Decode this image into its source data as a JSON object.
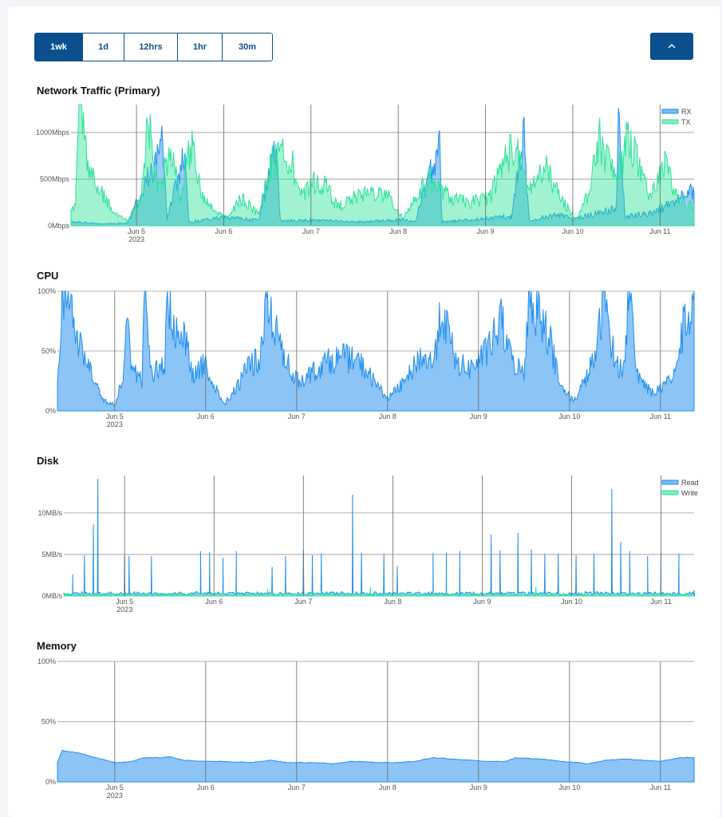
{
  "controls": {
    "ranges": [
      {
        "label": "1wk",
        "active": true
      },
      {
        "label": "1d",
        "active": false
      },
      {
        "label": "12hrs",
        "active": false
      },
      {
        "label": "1hr",
        "active": false
      },
      {
        "label": "30m",
        "active": false
      }
    ],
    "collapse_icon": "chevron-up-icon"
  },
  "colors": {
    "rx": "#1e8ef0",
    "tx": "#2fe29a",
    "cpu_line": "#1e8ef0",
    "cpu_fill": "#8cc4f6",
    "read": "#1e8ef0",
    "write": "#2fe29a",
    "memory_line": "#1e8ef0",
    "memory_fill": "#8cc4f6",
    "accent": "#0b4f8f"
  },
  "chart_data": [
    {
      "id": "network",
      "title": "Network Traffic (Primary)",
      "type": "area",
      "x_ticks": [
        "Jun 5",
        "Jun 6",
        "Jun 7",
        "Jun 8",
        "Jun 9",
        "Jun 10",
        "Jun 11"
      ],
      "x_year": "2023",
      "x_range": [
        4.25,
        11.39
      ],
      "y_ticks": [
        "0Mbps",
        "500Mbps",
        "1000Mbps"
      ],
      "y_tick_values": [
        0,
        500,
        1000
      ],
      "ylim": [
        0,
        1300
      ],
      "legend": [
        "RX",
        "TX"
      ],
      "legend_position": "top-right",
      "grid": true,
      "series": [
        {
          "name": "RX",
          "points": [
            [
              4.3,
              40
            ],
            [
              4.6,
              20
            ],
            [
              4.9,
              30
            ],
            [
              5.3,
              870
            ],
            [
              5.35,
              60
            ],
            [
              5.55,
              740
            ],
            [
              5.6,
              40
            ],
            [
              6.0,
              90
            ],
            [
              6.4,
              60
            ],
            [
              6.6,
              820
            ],
            [
              6.65,
              50
            ],
            [
              7.0,
              60
            ],
            [
              7.5,
              40
            ],
            [
              8.0,
              60
            ],
            [
              8.2,
              50
            ],
            [
              8.47,
              900
            ],
            [
              8.5,
              40
            ],
            [
              8.8,
              60
            ],
            [
              9.3,
              100
            ],
            [
              9.44,
              960
            ],
            [
              9.5,
              60
            ],
            [
              9.85,
              120
            ],
            [
              10.0,
              70
            ],
            [
              10.5,
              180
            ],
            [
              10.52,
              1180
            ],
            [
              10.6,
              100
            ],
            [
              10.9,
              130
            ],
            [
              11.2,
              270
            ],
            [
              11.39,
              380
            ]
          ]
        },
        {
          "name": "TX",
          "points": [
            [
              4.3,
              200
            ],
            [
              4.35,
              1260
            ],
            [
              4.45,
              600
            ],
            [
              4.6,
              350
            ],
            [
              4.75,
              120
            ],
            [
              4.9,
              60
            ],
            [
              5.05,
              300
            ],
            [
              5.13,
              1130
            ],
            [
              5.25,
              400
            ],
            [
              5.4,
              800
            ],
            [
              5.5,
              300
            ],
            [
              5.63,
              880
            ],
            [
              5.75,
              300
            ],
            [
              5.9,
              150
            ],
            [
              6.05,
              80
            ],
            [
              6.2,
              300
            ],
            [
              6.4,
              120
            ],
            [
              6.55,
              680
            ],
            [
              6.75,
              770
            ],
            [
              6.9,
              300
            ],
            [
              7.05,
              480
            ],
            [
              7.2,
              400
            ],
            [
              7.3,
              200
            ],
            [
              7.5,
              300
            ],
            [
              7.7,
              360
            ],
            [
              7.9,
              300
            ],
            [
              8.05,
              80
            ],
            [
              8.2,
              300
            ],
            [
              8.35,
              500
            ],
            [
              8.6,
              300
            ],
            [
              8.8,
              250
            ],
            [
              9.05,
              300
            ],
            [
              9.25,
              780
            ],
            [
              9.35,
              800
            ],
            [
              9.5,
              400
            ],
            [
              9.7,
              600
            ],
            [
              9.85,
              300
            ],
            [
              10.05,
              60
            ],
            [
              10.2,
              400
            ],
            [
              10.3,
              930
            ],
            [
              10.5,
              500
            ],
            [
              10.65,
              1000
            ],
            [
              10.8,
              480
            ],
            [
              10.9,
              300
            ],
            [
              11.05,
              650
            ],
            [
              11.2,
              300
            ],
            [
              11.39,
              200
            ]
          ]
        }
      ]
    },
    {
      "id": "cpu",
      "title": "CPU",
      "type": "area",
      "x_ticks": [
        "Jun 5",
        "Jun 6",
        "Jun 7",
        "Jun 8",
        "Jun 9",
        "Jun 10",
        "Jun 11"
      ],
      "x_year": "2023",
      "x_range": [
        4.37,
        11.37
      ],
      "y_ticks": [
        "0%",
        "50%",
        "100%"
      ],
      "y_tick_values": [
        0,
        50,
        100
      ],
      "ylim": [
        0,
        100
      ],
      "grid": true,
      "series": [
        {
          "name": "",
          "points": [
            [
              4.37,
              20
            ],
            [
              4.42,
              100
            ],
            [
              4.5,
              85
            ],
            [
              4.6,
              60
            ],
            [
              4.7,
              40
            ],
            [
              4.8,
              20
            ],
            [
              4.9,
              8
            ],
            [
              5.0,
              5
            ],
            [
              5.1,
              30
            ],
            [
              5.12,
              80
            ],
            [
              5.2,
              35
            ],
            [
              5.3,
              25
            ],
            [
              5.33,
              95
            ],
            [
              5.4,
              30
            ],
            [
              5.55,
              40
            ],
            [
              5.58,
              90
            ],
            [
              5.7,
              60
            ],
            [
              5.75,
              70
            ],
            [
              5.85,
              30
            ],
            [
              6.0,
              40
            ],
            [
              6.1,
              20
            ],
            [
              6.2,
              5
            ],
            [
              6.35,
              20
            ],
            [
              6.45,
              35
            ],
            [
              6.6,
              45
            ],
            [
              6.67,
              90
            ],
            [
              6.75,
              70
            ],
            [
              6.9,
              40
            ],
            [
              7.0,
              25
            ],
            [
              7.15,
              30
            ],
            [
              7.3,
              40
            ],
            [
              7.5,
              45
            ],
            [
              7.7,
              40
            ],
            [
              7.9,
              20
            ],
            [
              8.0,
              10
            ],
            [
              8.2,
              25
            ],
            [
              8.35,
              45
            ],
            [
              8.5,
              40
            ],
            [
              8.6,
              85
            ],
            [
              8.75,
              40
            ],
            [
              8.9,
              35
            ],
            [
              9.1,
              50
            ],
            [
              9.25,
              75
            ],
            [
              9.35,
              45
            ],
            [
              9.5,
              30
            ],
            [
              9.55,
              95
            ],
            [
              9.7,
              75
            ],
            [
              9.8,
              55
            ],
            [
              9.9,
              20
            ],
            [
              10.05,
              8
            ],
            [
              10.2,
              30
            ],
            [
              10.3,
              50
            ],
            [
              10.38,
              100
            ],
            [
              10.5,
              40
            ],
            [
              10.6,
              35
            ],
            [
              10.65,
              100
            ],
            [
              10.75,
              30
            ],
            [
              10.9,
              15
            ],
            [
              11.05,
              20
            ],
            [
              11.2,
              40
            ],
            [
              11.25,
              70
            ],
            [
              11.37,
              80
            ]
          ]
        }
      ]
    },
    {
      "id": "disk",
      "title": "Disk",
      "type": "area",
      "x_ticks": [
        "Jun 5",
        "Jun 6",
        "Jun 7",
        "Jun 8",
        "Jun 9",
        "Jun 10",
        "Jun 11"
      ],
      "x_year": "2023",
      "x_range": [
        4.32,
        11.37
      ],
      "y_ticks": [
        "0MB/s",
        "5MB/s",
        "10MB/s"
      ],
      "y_tick_values": [
        0,
        5,
        10
      ],
      "ylim": [
        0,
        14.5
      ],
      "legend": [
        "Read",
        "Write"
      ],
      "legend_position": "top-right",
      "grid": true,
      "series": [
        {
          "name": "Read",
          "base": 0.3,
          "spikes": [
            [
              4.42,
              2.6
            ],
            [
              4.55,
              4.9
            ],
            [
              4.65,
              8.6
            ],
            [
              4.7,
              14.1
            ],
            [
              5.0,
              4.9
            ],
            [
              5.05,
              4.8
            ],
            [
              5.3,
              4.8
            ],
            [
              5.85,
              5.4
            ],
            [
              5.95,
              5.3
            ],
            [
              6.1,
              4.6
            ],
            [
              6.25,
              5.4
            ],
            [
              6.65,
              3.5
            ],
            [
              6.8,
              4.8
            ],
            [
              7.0,
              5.6
            ],
            [
              7.1,
              4.9
            ],
            [
              7.2,
              5.1
            ],
            [
              7.55,
              12.2
            ],
            [
              7.65,
              5.2
            ],
            [
              7.9,
              5.1
            ],
            [
              8.05,
              3.6
            ],
            [
              8.45,
              5.2
            ],
            [
              8.6,
              5.2
            ],
            [
              8.75,
              5.4
            ],
            [
              9.1,
              7.4
            ],
            [
              9.2,
              5.5
            ],
            [
              9.4,
              7.6
            ],
            [
              9.55,
              5.6
            ],
            [
              9.7,
              5.1
            ],
            [
              9.85,
              5.1
            ],
            [
              10.05,
              4.9
            ],
            [
              10.25,
              5.1
            ],
            [
              10.45,
              12.9
            ],
            [
              10.55,
              6.5
            ],
            [
              10.65,
              5.4
            ],
            [
              10.85,
              4.8
            ],
            [
              11.0,
              5.3
            ],
            [
              11.2,
              5.1
            ],
            [
              11.37,
              0.7
            ]
          ]
        },
        {
          "name": "Write",
          "base": 0.2,
          "spikes": [
            [
              6.6,
              0.8
            ],
            [
              7.2,
              0.6
            ],
            [
              7.75,
              1.1
            ],
            [
              8.45,
              0.6
            ],
            [
              9.6,
              1.1
            ],
            [
              10.15,
              0.6
            ]
          ]
        }
      ]
    },
    {
      "id": "memory",
      "title": "Memory",
      "type": "area",
      "x_ticks": [
        "Jun 5",
        "Jun 6",
        "Jun 7",
        "Jun 8",
        "Jun 9",
        "Jun 10",
        "Jun 11"
      ],
      "x_year": "2023",
      "x_range": [
        4.37,
        11.37
      ],
      "y_ticks": [
        "0%",
        "50%",
        "100%"
      ],
      "y_tick_values": [
        0,
        50,
        100
      ],
      "ylim": [
        0,
        100
      ],
      "grid": true,
      "series": [
        {
          "name": "",
          "points": [
            [
              4.37,
              16
            ],
            [
              4.42,
              26
            ],
            [
              4.6,
              24
            ],
            [
              4.8,
              20
            ],
            [
              5.0,
              16
            ],
            [
              5.2,
              17
            ],
            [
              5.3,
              20
            ],
            [
              5.5,
              20
            ],
            [
              5.6,
              21
            ],
            [
              5.75,
              18
            ],
            [
              6.0,
              17
            ],
            [
              6.2,
              17
            ],
            [
              6.5,
              16
            ],
            [
              6.7,
              18
            ],
            [
              6.9,
              16
            ],
            [
              7.2,
              16
            ],
            [
              7.4,
              15
            ],
            [
              7.6,
              17
            ],
            [
              7.9,
              16
            ],
            [
              8.1,
              16
            ],
            [
              8.3,
              17
            ],
            [
              8.5,
              20
            ],
            [
              8.7,
              19
            ],
            [
              8.9,
              18
            ],
            [
              9.1,
              17
            ],
            [
              9.3,
              17
            ],
            [
              9.4,
              20
            ],
            [
              9.7,
              19
            ],
            [
              9.9,
              17
            ],
            [
              10.1,
              16
            ],
            [
              10.2,
              15
            ],
            [
              10.4,
              18
            ],
            [
              10.6,
              19
            ],
            [
              10.8,
              18
            ],
            [
              11.0,
              17
            ],
            [
              11.2,
              20
            ],
            [
              11.37,
              20
            ]
          ]
        }
      ]
    }
  ]
}
